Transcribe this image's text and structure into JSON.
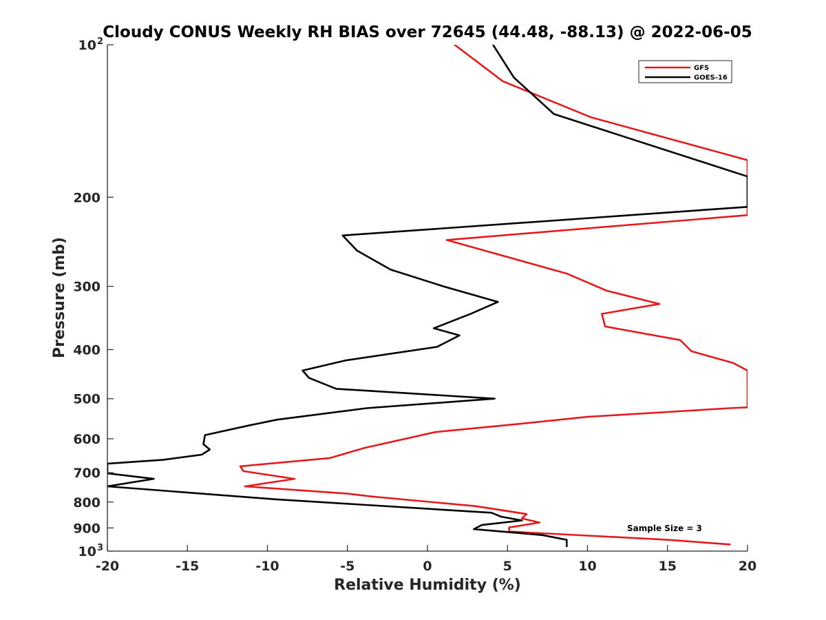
{
  "chart_data": {
    "type": "line",
    "title": "Cloudy CONUS Weekly RH BIAS over 72645 (44.48, -88.13) @ 2022-06-05",
    "xlabel": "Relative Humidity (%)",
    "ylabel": "Pressure (mb)",
    "xlim": [
      -20,
      20
    ],
    "ylim": [
      100,
      1000
    ],
    "y_scale": "log",
    "y_reversed": true,
    "x_ticks": [
      "-20",
      "-15",
      "-10",
      "-5",
      "0",
      "5",
      "10",
      "15",
      "20"
    ],
    "y_ticks": [
      {
        "value": 100,
        "base": "10",
        "exp": "2"
      },
      {
        "value": 200,
        "label": "200"
      },
      {
        "value": 300,
        "label": "300"
      },
      {
        "value": 400,
        "label": "400"
      },
      {
        "value": 500,
        "label": "500"
      },
      {
        "value": 600,
        "label": "600"
      },
      {
        "value": 700,
        "label": "700"
      },
      {
        "value": 800,
        "label": "800"
      },
      {
        "value": 900,
        "label": "900"
      },
      {
        "value": 1000,
        "base": "10",
        "exp": "3"
      }
    ],
    "grid": false,
    "legend_position": "top-right",
    "annotation": "Sample Size = 3",
    "series": [
      {
        "name": "GFS",
        "color": "#e41a1c",
        "points": [
          [
            1.7,
            100
          ],
          [
            4.7,
            118
          ],
          [
            10.2,
            139
          ],
          [
            20,
            169
          ],
          [
            20,
            217
          ],
          [
            1.2,
            243
          ],
          [
            8.7,
            283
          ],
          [
            11.2,
            306
          ],
          [
            14.5,
            325
          ],
          [
            10.9,
            340
          ],
          [
            11.1,
            360
          ],
          [
            15.8,
            383
          ],
          [
            16.5,
            403
          ],
          [
            19.1,
            425
          ],
          [
            20,
            440
          ],
          [
            20,
            520
          ],
          [
            18.9,
            522
          ],
          [
            10.0,
            543
          ],
          [
            5.9,
            560
          ],
          [
            0.5,
            582
          ],
          [
            -3.9,
            625
          ],
          [
            -6.1,
            655
          ],
          [
            -11.7,
            680
          ],
          [
            -11.5,
            695
          ],
          [
            -8.3,
            720
          ],
          [
            -11.4,
            745
          ],
          [
            -5.0,
            770
          ],
          [
            -3.5,
            780
          ],
          [
            3.0,
            815
          ],
          [
            6.2,
            845
          ],
          [
            5.9,
            862
          ],
          [
            7.0,
            878
          ],
          [
            5.1,
            898
          ],
          [
            5.1,
            915
          ],
          [
            10.0,
            932
          ],
          [
            15.0,
            950
          ],
          [
            18.9,
            970
          ]
        ]
      },
      {
        "name": "GOES-16",
        "color": "#000000",
        "points": [
          [
            4.1,
            100
          ],
          [
            5.4,
            116
          ],
          [
            7.9,
            137
          ],
          [
            20,
            182
          ],
          [
            20,
            209
          ],
          [
            -5.3,
            238
          ],
          [
            -4.4,
            255
          ],
          [
            -2.3,
            278
          ],
          [
            1.0,
            300
          ],
          [
            4.4,
            322
          ],
          [
            2.7,
            340
          ],
          [
            0.4,
            363
          ],
          [
            2.0,
            375
          ],
          [
            0.6,
            395
          ],
          [
            -5.1,
            420
          ],
          [
            -7.8,
            440
          ],
          [
            -7.4,
            455
          ],
          [
            -5.7,
            478
          ],
          [
            4.2,
            500
          ],
          [
            -3.8,
            522
          ],
          [
            -9.4,
            550
          ],
          [
            -11.2,
            565
          ],
          [
            -13.9,
            590
          ],
          [
            -14.0,
            615
          ],
          [
            -13.6,
            630
          ],
          [
            -14.1,
            645
          ],
          [
            -16.5,
            660
          ],
          [
            -20,
            672
          ],
          [
            -20,
            702
          ],
          [
            -17.1,
            720
          ],
          [
            -20,
            745
          ],
          [
            -9.5,
            790
          ],
          [
            4.0,
            840
          ],
          [
            4.6,
            855
          ],
          [
            5.9,
            870
          ],
          [
            3.4,
            888
          ],
          [
            2.9,
            905
          ],
          [
            7.2,
            930
          ],
          [
            8.7,
            950
          ],
          [
            8.7,
            978
          ]
        ]
      }
    ]
  }
}
